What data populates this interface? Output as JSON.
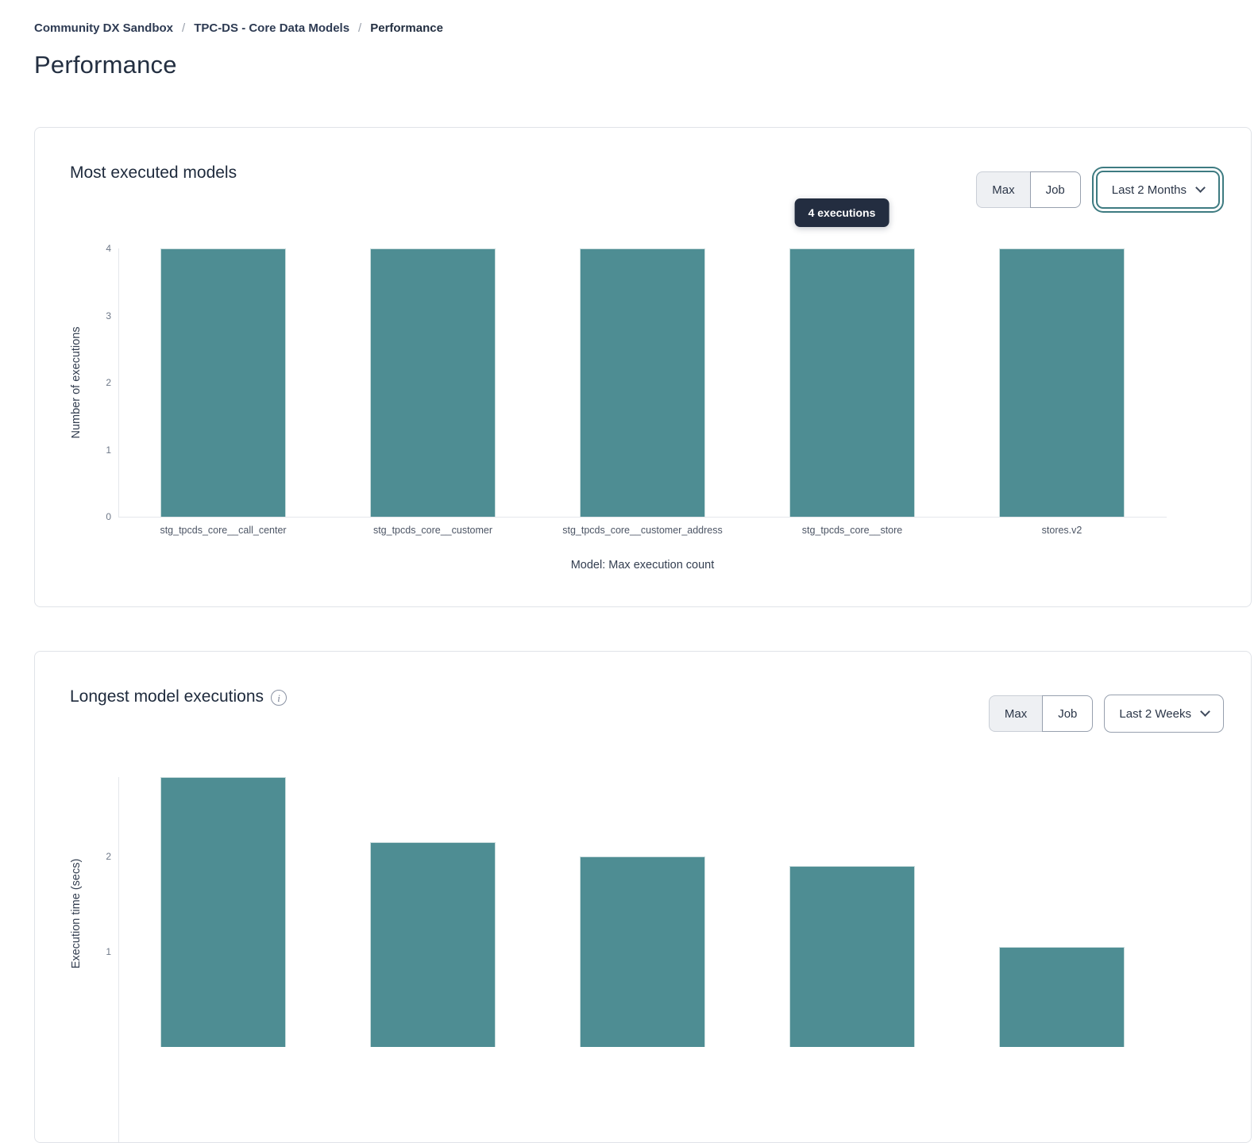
{
  "breadcrumb": {
    "separator": "/",
    "items": [
      "Community DX Sandbox",
      "TPC-DS - Core Data Models",
      "Performance"
    ]
  },
  "page": {
    "title": "Performance"
  },
  "colors": {
    "bar_fill": "#4e8d93",
    "bar_border": "#c9dcdd",
    "tooltip_bg": "#232d40",
    "accent_teal": "#3e7b81"
  },
  "cards": [
    {
      "title": "Most executed models",
      "controls": {
        "max_label": "Max",
        "job_label": "Job",
        "range_value": "Last 2 Months"
      },
      "tooltip": {
        "text": "4 executions"
      },
      "chart_data": {
        "type": "bar",
        "categories": [
          "stg_tpcds_core__call_center",
          "stg_tpcds_core__customer",
          "stg_tpcds_core__customer_address",
          "stg_tpcds_core__store",
          "stores.v2"
        ],
        "values": [
          4,
          4,
          4,
          4,
          4
        ],
        "title": "Most executed models",
        "xlabel": "Model: Max execution count",
        "ylabel": "Number of executions",
        "ylim": [
          0,
          4
        ],
        "yticks": [
          0,
          1,
          2,
          3,
          4
        ],
        "grid": false,
        "legend": "none"
      }
    },
    {
      "title": "Longest model executions",
      "controls": {
        "max_label": "Max",
        "job_label": "Job",
        "range_value": "Last 2 Weeks"
      },
      "chart_data": {
        "type": "bar",
        "values": [
          2.83,
          2.15,
          2.0,
          1.9,
          1.05
        ],
        "title": "Longest model executions",
        "ylabel": "Execution time (secs)",
        "ylim": [
          0,
          2.83
        ],
        "yticks": [
          1,
          2
        ],
        "grid": false,
        "legend": "none"
      }
    }
  ]
}
